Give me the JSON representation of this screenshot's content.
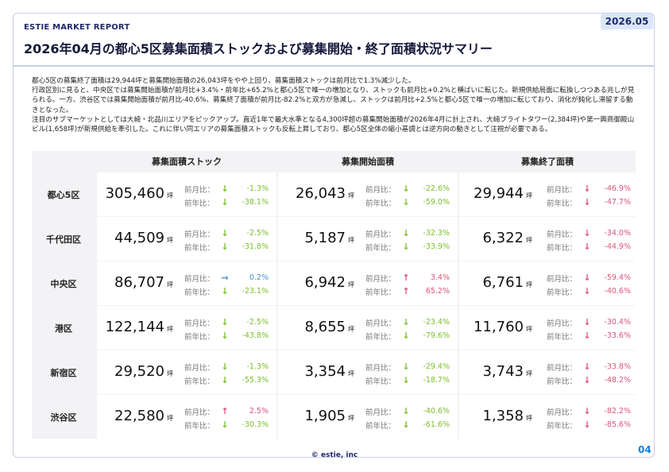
{
  "header": {
    "brand": "ESTIE MARKET REPORT",
    "date": "2026.05",
    "title": "2026年04月の都心5区募集面積ストックおよび募集開始・終了面積状況サマリー"
  },
  "summary": [
    "都心5区の募集終了面積は29,944坪と募集開始面積の26,043坪をやや上回り、募集面積ストックは前月比で1.3%減少した。",
    "行政区別に見ると、中央区では募集開始面積が前月比+3.4%・前年比+65.2%と都心5区で唯一の増加となり、ストックも前月比+0.2%と横ばいに転じた。新規供給局面に転換しつつある兆しが見られる。一方、渋谷区では募集開始面積が前月比-40.6%、募集終了面積が前月比-82.2%と双方が急減し、ストックは前月比+2.5%と都心5区で唯一の増加に転じており、消化が鈍化し滞留する動きとなった。",
    "注目のサブマーケットとしては大崎・北品川エリアをピックアップ。直近1年で最大水準となる4,300坪超の募集開始面積が2026年4月に計上され、大崎ブライトタワー(2,384坪)や第一興商御殿山ビル(1,658坪)が新規供給を牽引した。これに伴い同エリアの募集面積ストックも反転上昇しており、都心5区全体の縮小基調とは逆方向の動きとして注視が必要である。"
  ],
  "table": {
    "columns": [
      "募集面積ストック",
      "募集開始面積",
      "募集終了面積"
    ],
    "unit": "坪",
    "mom_label": "前月比：",
    "yoy_label": "前年比：",
    "rows": [
      {
        "name": "都心5区",
        "cells": [
          {
            "value": "305,460",
            "mom": "-1.3%",
            "mom_dir": "down",
            "mom_color": "green",
            "yoy": "-38.1%",
            "yoy_dir": "down",
            "yoy_color": "green"
          },
          {
            "value": "26,043",
            "mom": "-22.6%",
            "mom_dir": "down",
            "mom_color": "green",
            "yoy": "-59.0%",
            "yoy_dir": "down",
            "yoy_color": "green"
          },
          {
            "value": "29,944",
            "mom": "-46.9%",
            "mom_dir": "down",
            "mom_color": "red",
            "yoy": "-47.7%",
            "yoy_dir": "down",
            "yoy_color": "red"
          }
        ]
      },
      {
        "name": "千代田区",
        "cells": [
          {
            "value": "44,509",
            "mom": "-2.5%",
            "mom_dir": "down",
            "mom_color": "green",
            "yoy": "-31.8%",
            "yoy_dir": "down",
            "yoy_color": "green"
          },
          {
            "value": "5,187",
            "mom": "-32.3%",
            "mom_dir": "down",
            "mom_color": "green",
            "yoy": "-33.9%",
            "yoy_dir": "down",
            "yoy_color": "green"
          },
          {
            "value": "6,322",
            "mom": "-34.0%",
            "mom_dir": "down",
            "mom_color": "red",
            "yoy": "-44.9%",
            "yoy_dir": "down",
            "yoy_color": "red"
          }
        ]
      },
      {
        "name": "中央区",
        "cells": [
          {
            "value": "86,707",
            "mom": "0.2%",
            "mom_dir": "flat",
            "mom_color": "blue",
            "yoy": "-23.1%",
            "yoy_dir": "down",
            "yoy_color": "green"
          },
          {
            "value": "6,942",
            "mom": "3.4%",
            "mom_dir": "up",
            "mom_color": "red",
            "yoy": "65.2%",
            "yoy_dir": "up",
            "yoy_color": "red"
          },
          {
            "value": "6,761",
            "mom": "-59.4%",
            "mom_dir": "down",
            "mom_color": "red",
            "yoy": "-40.6%",
            "yoy_dir": "down",
            "yoy_color": "red"
          }
        ]
      },
      {
        "name": "港区",
        "cells": [
          {
            "value": "122,144",
            "mom": "-2.5%",
            "mom_dir": "down",
            "mom_color": "green",
            "yoy": "-43.8%",
            "yoy_dir": "down",
            "yoy_color": "green"
          },
          {
            "value": "8,655",
            "mom": "-23.4%",
            "mom_dir": "down",
            "mom_color": "green",
            "yoy": "-79.6%",
            "yoy_dir": "down",
            "yoy_color": "green"
          },
          {
            "value": "11,760",
            "mom": "-30.4%",
            "mom_dir": "down",
            "mom_color": "red",
            "yoy": "-33.6%",
            "yoy_dir": "down",
            "yoy_color": "red"
          }
        ]
      },
      {
        "name": "新宿区",
        "cells": [
          {
            "value": "29,520",
            "mom": "-1.3%",
            "mom_dir": "down",
            "mom_color": "green",
            "yoy": "-55.3%",
            "yoy_dir": "down",
            "yoy_color": "green"
          },
          {
            "value": "3,354",
            "mom": "-29.4%",
            "mom_dir": "down",
            "mom_color": "green",
            "yoy": "-18.7%",
            "yoy_dir": "down",
            "yoy_color": "green"
          },
          {
            "value": "3,743",
            "mom": "-33.8%",
            "mom_dir": "down",
            "mom_color": "red",
            "yoy": "-48.2%",
            "yoy_dir": "down",
            "yoy_color": "red"
          }
        ]
      },
      {
        "name": "渋谷区",
        "cells": [
          {
            "value": "22,580",
            "mom": "2.5%",
            "mom_dir": "up",
            "mom_color": "red",
            "yoy": "-30.3%",
            "yoy_dir": "down",
            "yoy_color": "green"
          },
          {
            "value": "1,905",
            "mom": "-40.6%",
            "mom_dir": "down",
            "mom_color": "green",
            "yoy": "-61.6%",
            "yoy_dir": "down",
            "yoy_color": "green"
          },
          {
            "value": "1,358",
            "mom": "-82.2%",
            "mom_dir": "down",
            "mom_color": "red",
            "yoy": "-85.6%",
            "yoy_dir": "down",
            "yoy_color": "red"
          }
        ]
      }
    ]
  },
  "footer": {
    "copyright": "© estie, inc",
    "page": "04"
  }
}
